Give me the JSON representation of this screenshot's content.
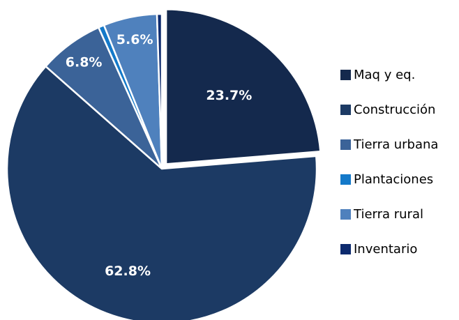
{
  "chart_data": {
    "type": "pie",
    "categories": [
      "Maq y eq.",
      "Construcción",
      "Tierra urbana",
      "Plantaciones",
      "Tierra rural",
      "Inventario"
    ],
    "values": [
      23.7,
      62.8,
      6.8,
      0.6,
      5.6,
      0.5
    ],
    "value_labels": [
      "23.7%",
      "62.8%",
      "6.8%",
      null,
      "5.6%",
      null
    ],
    "colors": [
      "#14294d",
      "#1c3a64",
      "#3b6398",
      "#1479c9",
      "#4f81bd",
      "#0d2a6e"
    ],
    "legend": "right"
  }
}
